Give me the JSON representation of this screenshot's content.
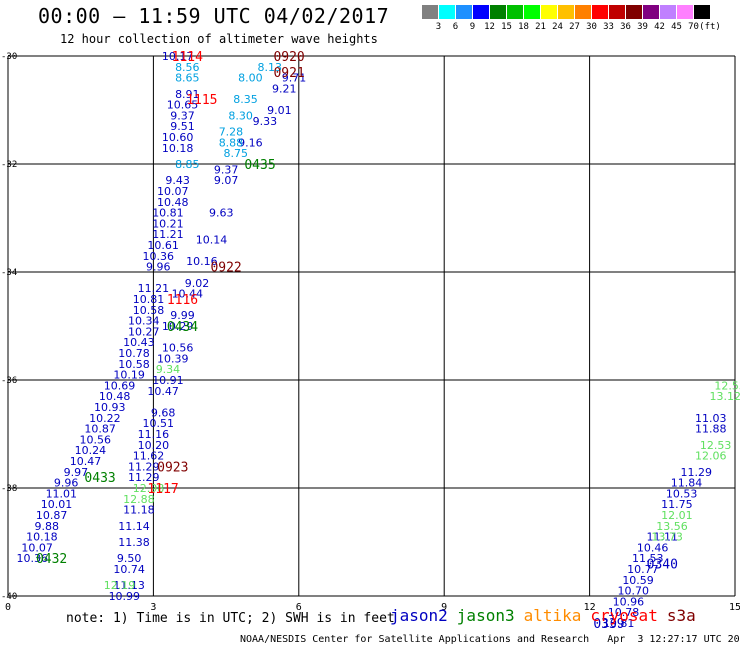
{
  "header": {
    "title": "00:00 – 11:59 UTC 04/02/2017",
    "subtitle": "12 hour collection of altimeter wave heights"
  },
  "colorbar": {
    "colors": [
      "#808080",
      "#00ffff",
      "#1e90ff",
      "#0000ff",
      "#008000",
      "#00c000",
      "#00ff00",
      "#ffff00",
      "#ffc000",
      "#ff8000",
      "#ff0000",
      "#c00000",
      "#800000",
      "#800080",
      "#c080ff",
      "#ff80ff",
      "#000000"
    ],
    "labels": [
      "",
      "3",
      "6",
      "9",
      "12",
      "15",
      "18",
      "21",
      "24",
      "27",
      "30",
      "33",
      "36",
      "39",
      "42",
      "45",
      "70",
      "(ft)"
    ]
  },
  "axes": {
    "y_ticks": [
      "-30",
      "-32",
      "-34",
      "-36",
      "-38",
      "-40"
    ],
    "x_ticks": [
      "0",
      "3",
      "6",
      "9",
      "12",
      "15"
    ]
  },
  "chart_data": {
    "type": "scatter",
    "xlim": [
      0,
      15
    ],
    "ylim": [
      -40,
      -30
    ],
    "passes": [
      {
        "color": "#0000c0",
        "labels": [
          {
            "lon": 3.5,
            "lat": -30.0,
            "text": "10.17"
          },
          {
            "lon": 3.7,
            "lat": -30.7,
            "text": "8.91"
          },
          {
            "lon": 3.6,
            "lat": -30.9,
            "text": "10.65"
          },
          {
            "lon": 3.6,
            "lat": -31.1,
            "text": "9.37"
          },
          {
            "lon": 3.6,
            "lat": -31.3,
            "text": "9.51"
          },
          {
            "lon": 3.5,
            "lat": -31.5,
            "text": "10.60"
          },
          {
            "lon": 3.5,
            "lat": -31.7,
            "text": "10.18"
          },
          {
            "lon": 3.5,
            "lat": -32.3,
            "text": "9.43"
          },
          {
            "lon": 3.4,
            "lat": -32.5,
            "text": "10.07"
          },
          {
            "lon": 3.4,
            "lat": -32.7,
            "text": "10.48"
          },
          {
            "lon": 3.3,
            "lat": -32.9,
            "text": "10.81"
          },
          {
            "lon": 3.3,
            "lat": -33.1,
            "text": "10.21"
          },
          {
            "lon": 3.3,
            "lat": -33.3,
            "text": "11.21"
          },
          {
            "lon": 3.2,
            "lat": -33.5,
            "text": "10.61"
          },
          {
            "lon": 3.1,
            "lat": -33.7,
            "text": "10.36"
          },
          {
            "lon": 3.1,
            "lat": -33.9,
            "text": "9.96"
          },
          {
            "lon": 3.0,
            "lat": -34.3,
            "text": "11.21"
          },
          {
            "lon": 2.9,
            "lat": -34.5,
            "text": "10.81"
          },
          {
            "lon": 2.9,
            "lat": -34.7,
            "text": "10.58"
          },
          {
            "lon": 2.8,
            "lat": -34.9,
            "text": "10.34"
          },
          {
            "lon": 2.8,
            "lat": -35.1,
            "text": "10.27"
          },
          {
            "lon": 2.7,
            "lat": -35.3,
            "text": "10.43"
          },
          {
            "lon": 2.6,
            "lat": -35.5,
            "text": "10.78"
          },
          {
            "lon": 2.6,
            "lat": -35.7,
            "text": "10.58"
          },
          {
            "lon": 2.5,
            "lat": -35.9,
            "text": "10.19"
          },
          {
            "lon": 2.3,
            "lat": -36.1,
            "text": "10.69"
          },
          {
            "lon": 2.2,
            "lat": -36.3,
            "text": "10.48"
          },
          {
            "lon": 2.1,
            "lat": -36.5,
            "text": "10.93"
          },
          {
            "lon": 2.0,
            "lat": -36.7,
            "text": "10.22"
          },
          {
            "lon": 1.9,
            "lat": -36.9,
            "text": "10.87"
          },
          {
            "lon": 1.8,
            "lat": -37.1,
            "text": "10.56"
          },
          {
            "lon": 1.7,
            "lat": -37.3,
            "text": "10.24"
          },
          {
            "lon": 1.6,
            "lat": -37.5,
            "text": "10.47"
          },
          {
            "lon": 1.4,
            "lat": -37.7,
            "text": "9.97"
          },
          {
            "lon": 1.2,
            "lat": -37.9,
            "text": "9.96"
          },
          {
            "lon": 1.1,
            "lat": -38.1,
            "text": "11.01"
          },
          {
            "lon": 1.0,
            "lat": -38.3,
            "text": "10.01"
          },
          {
            "lon": 0.9,
            "lat": -38.5,
            "text": "10.87"
          },
          {
            "lon": 0.8,
            "lat": -38.7,
            "text": "9.88"
          },
          {
            "lon": 0.7,
            "lat": -38.9,
            "text": "10.18"
          },
          {
            "lon": 0.6,
            "lat": -39.1,
            "text": "10.07"
          },
          {
            "lon": 0.5,
            "lat": -39.3,
            "text": "10.36"
          }
        ]
      },
      {
        "color": "#00a0e0",
        "labels": [
          {
            "lon": 3.7,
            "lat": -30.2,
            "text": "8.56"
          },
          {
            "lon": 3.7,
            "lat": -30.4,
            "text": "8.65"
          },
          {
            "lon": 3.7,
            "lat": -32.0,
            "text": "8.85"
          }
        ]
      },
      {
        "color": "#0000c0",
        "labels": [
          {
            "lon": 5.9,
            "lat": -30.4,
            "text": "9.71"
          },
          {
            "lon": 5.7,
            "lat": -30.6,
            "text": "9.21"
          },
          {
            "lon": 5.6,
            "lat": -31.0,
            "text": "9.01"
          },
          {
            "lon": 5.3,
            "lat": -31.2,
            "text": "9.33"
          },
          {
            "lon": 5.0,
            "lat": -31.6,
            "text": "9.16"
          },
          {
            "lon": 4.5,
            "lat": -32.1,
            "text": "9.37"
          },
          {
            "lon": 4.5,
            "lat": -32.3,
            "text": "9.07"
          },
          {
            "lon": 4.4,
            "lat": -32.9,
            "text": "9.63"
          },
          {
            "lon": 4.2,
            "lat": -33.4,
            "text": "10.14"
          },
          {
            "lon": 4.0,
            "lat": -33.8,
            "text": "10.16"
          },
          {
            "lon": 3.9,
            "lat": -34.2,
            "text": "9.02"
          },
          {
            "lon": 3.7,
            "lat": -34.4,
            "text": "10.44"
          },
          {
            "lon": 3.6,
            "lat": -34.8,
            "text": "9.99"
          },
          {
            "lon": 3.5,
            "lat": -35.0,
            "text": "10.29"
          },
          {
            "lon": 3.5,
            "lat": -35.4,
            "text": "10.56"
          },
          {
            "lon": 3.4,
            "lat": -35.6,
            "text": "10.39"
          },
          {
            "lon": 3.3,
            "lat": -36.0,
            "text": "10.91"
          },
          {
            "lon": 3.2,
            "lat": -36.2,
            "text": "10.47"
          },
          {
            "lon": 3.2,
            "lat": -36.6,
            "text": "9.68"
          },
          {
            "lon": 3.1,
            "lat": -36.8,
            "text": "10.51"
          },
          {
            "lon": 3.0,
            "lat": -37.0,
            "text": "11.16"
          },
          {
            "lon": 3.0,
            "lat": -37.2,
            "text": "10.20"
          },
          {
            "lon": 2.9,
            "lat": -37.4,
            "text": "11.62"
          },
          {
            "lon": 2.8,
            "lat": -37.6,
            "text": "11.29"
          },
          {
            "lon": 2.8,
            "lat": -37.8,
            "text": "11.29"
          },
          {
            "lon": 2.7,
            "lat": -38.4,
            "text": "11.18"
          },
          {
            "lon": 2.6,
            "lat": -38.7,
            "text": "11.14"
          },
          {
            "lon": 2.6,
            "lat": -39.0,
            "text": "11.38"
          },
          {
            "lon": 2.5,
            "lat": -39.3,
            "text": "9.50"
          },
          {
            "lon": 2.5,
            "lat": -39.5,
            "text": "10.74"
          },
          {
            "lon": 2.5,
            "lat": -39.8,
            "text": "11.13"
          },
          {
            "lon": 2.4,
            "lat": -40.0,
            "text": "10.99"
          }
        ]
      },
      {
        "color": "#00a0e0",
        "labels": [
          {
            "lon": 5.4,
            "lat": -30.2,
            "text": "8.13"
          },
          {
            "lon": 5.0,
            "lat": -30.4,
            "text": "8.00"
          },
          {
            "lon": 4.9,
            "lat": -30.8,
            "text": "8.35"
          },
          {
            "lon": 4.8,
            "lat": -31.1,
            "text": "8.30"
          },
          {
            "lon": 4.6,
            "lat": -31.4,
            "text": "7.28"
          },
          {
            "lon": 4.6,
            "lat": -31.6,
            "text": "8.88"
          },
          {
            "lon": 4.7,
            "lat": -31.8,
            "text": "8.75"
          }
        ]
      },
      {
        "color": "#60e060",
        "labels": [
          {
            "lon": 3.3,
            "lat": -35.8,
            "text": "9.34"
          },
          {
            "lon": 2.9,
            "lat": -38.0,
            "text": "12.98"
          },
          {
            "lon": 2.7,
            "lat": -38.2,
            "text": "12.88"
          },
          {
            "lon": 2.3,
            "lat": -39.8,
            "text": "12.19"
          }
        ]
      },
      {
        "color": "#0000c0",
        "labels": [
          {
            "lon": 14.5,
            "lat": -36.7,
            "text": "11.03"
          },
          {
            "lon": 14.5,
            "lat": -36.9,
            "text": "11.88"
          },
          {
            "lon": 14.2,
            "lat": -37.7,
            "text": "11.29"
          },
          {
            "lon": 14.0,
            "lat": -37.9,
            "text": "11.84"
          },
          {
            "lon": 13.9,
            "lat": -38.1,
            "text": "10.53"
          },
          {
            "lon": 13.8,
            "lat": -38.3,
            "text": "11.75"
          },
          {
            "lon": 13.5,
            "lat": -38.9,
            "text": "11.11"
          },
          {
            "lon": 13.3,
            "lat": -39.1,
            "text": "10.46"
          },
          {
            "lon": 13.2,
            "lat": -39.3,
            "text": "11.53"
          },
          {
            "lon": 13.1,
            "lat": -39.5,
            "text": "10.77"
          },
          {
            "lon": 13.0,
            "lat": -39.7,
            "text": "10.59"
          },
          {
            "lon": 12.9,
            "lat": -39.9,
            "text": "10.70"
          },
          {
            "lon": 12.8,
            "lat": -40.1,
            "text": "10.96"
          },
          {
            "lon": 12.7,
            "lat": -40.3,
            "text": "10.78"
          },
          {
            "lon": 12.6,
            "lat": -40.5,
            "text": "10.81"
          }
        ]
      },
      {
        "color": "#60e060",
        "labels": [
          {
            "lon": 14.9,
            "lat": -36.1,
            "text": "12.53"
          },
          {
            "lon": 14.8,
            "lat": -36.3,
            "text": "13.12"
          },
          {
            "lon": 14.6,
            "lat": -37.2,
            "text": "12.53"
          },
          {
            "lon": 14.5,
            "lat": -37.4,
            "text": "12.06"
          },
          {
            "lon": 13.8,
            "lat": -38.5,
            "text": "12.01"
          },
          {
            "lon": 13.7,
            "lat": -38.7,
            "text": "13.56"
          },
          {
            "lon": 13.6,
            "lat": -38.9,
            "text": "13.73"
          }
        ]
      }
    ],
    "pass_times": [
      {
        "lon": 3.7,
        "lat": -30.0,
        "text": "1114",
        "color": "#ff0000"
      },
      {
        "lon": 5.8,
        "lat": -30.0,
        "text": "0920",
        "color": "#800000"
      },
      {
        "lon": 5.8,
        "lat": -30.3,
        "text": "0921",
        "color": "#800000"
      },
      {
        "lon": 4.0,
        "lat": -30.8,
        "text": "1115",
        "color": "#ff0000"
      },
      {
        "lon": 5.2,
        "lat": -32.0,
        "text": "0435",
        "color": "#008000"
      },
      {
        "lon": 4.5,
        "lat": -33.9,
        "text": "0922",
        "color": "#800000"
      },
      {
        "lon": 3.6,
        "lat": -34.5,
        "text": "1116",
        "color": "#ff0000"
      },
      {
        "lon": 3.6,
        "lat": -35.0,
        "text": "0434",
        "color": "#008000"
      },
      {
        "lon": 3.4,
        "lat": -37.6,
        "text": "0923",
        "color": "#800000"
      },
      {
        "lon": 3.2,
        "lat": -38.0,
        "text": "1117",
        "color": "#ff0000"
      },
      {
        "lon": 1.9,
        "lat": -37.8,
        "text": "0433",
        "color": "#008000"
      },
      {
        "lon": 0.9,
        "lat": -39.3,
        "text": "0432",
        "color": "#008000"
      },
      {
        "lon": 13.5,
        "lat": -39.4,
        "text": "0340",
        "color": "#0000c0"
      },
      {
        "lon": 12.4,
        "lat": -40.5,
        "text": "0339",
        "color": "#0000c0"
      }
    ]
  },
  "footer": {
    "note": "note: 1) Time is in UTC; 2) SWH is in feet",
    "legend": [
      {
        "label": "jason2",
        "color": "#0000c0"
      },
      {
        "label": "jason3",
        "color": "#008000"
      },
      {
        "label": "altika",
        "color": "#ff8c00"
      },
      {
        "label": "cryosat",
        "color": "#ff0000"
      },
      {
        "label": "s3a",
        "color": "#800000"
      }
    ],
    "credit": "NOAA/NESDIS Center for Satellite Applications and Research   Apr  3 12:27:17 UTC 2017"
  }
}
